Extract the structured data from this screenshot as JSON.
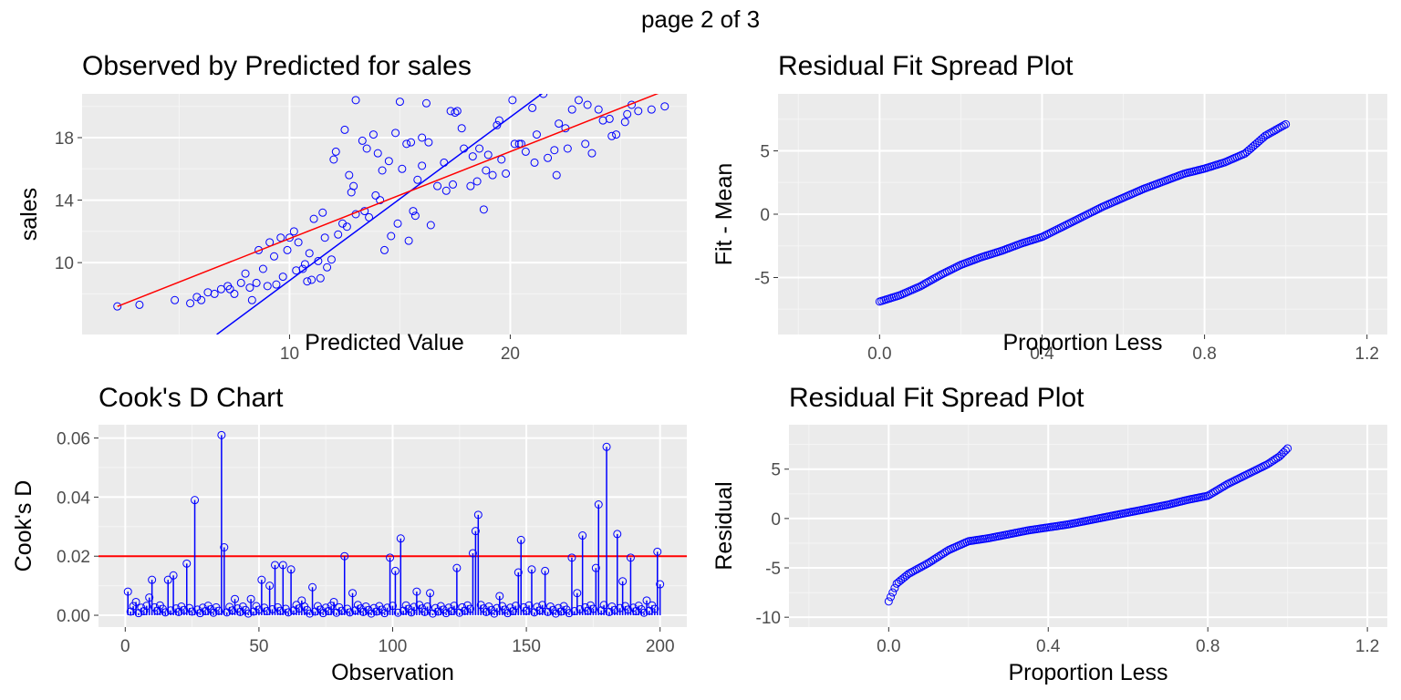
{
  "page_title": "page 2 of 3",
  "colors": {
    "panel": "#ebebeb",
    "grid_major": "#ffffff",
    "grid_minor": "#f5f5f5",
    "points": "#0000ff",
    "ref_line": "#ff0000",
    "tick": "#4d4d4d"
  },
  "chart_data": [
    {
      "type": "scatter",
      "title": "Observed by Predicted for sales",
      "xlabel": "Predicted Value",
      "ylabel": "sales",
      "xlim": [
        0.6,
        28.0
      ],
      "ylim": [
        5.4,
        20.8
      ],
      "xticks": [
        10,
        20
      ],
      "yticks": [
        10,
        14,
        18
      ],
      "series": [
        {
          "values_x": [
            2.2,
            3.2,
            4.8,
            5.5,
            5.8,
            6.0,
            6.3,
            6.6,
            6.9,
            7.2,
            7.5,
            7.8,
            8.0,
            8.2,
            8.5,
            8.8,
            9.0,
            9.3,
            9.6,
            9.9,
            10.2,
            10.4,
            10.6,
            10.9,
            11.1,
            11.3,
            11.6,
            11.9,
            12.1,
            12.4,
            12.7,
            13.0,
            13.3,
            13.6,
            13.9,
            14.2,
            14.5,
            14.8,
            15.1,
            15.4,
            15.7,
            16.0,
            16.3,
            16.7,
            17.0,
            17.4,
            17.8,
            18.2,
            18.6,
            19.0,
            19.4,
            19.8,
            20.2,
            20.7,
            21.2,
            21.7,
            22.2,
            22.8,
            23.4,
            24.0,
            24.6,
            25.2,
            25.8,
            26.4,
            27.0,
            11.5,
            12.0,
            12.5,
            13.0,
            13.5,
            14.0,
            15.0,
            15.5,
            16.0,
            17.5,
            18.5,
            19.5,
            21.0,
            22.5,
            23.5,
            24.5,
            25.5,
            8.6,
            9.1,
            9.7,
            10.3,
            10.8,
            11.4,
            12.2,
            12.8,
            13.4,
            14.3,
            14.9,
            15.6,
            16.4,
            17.1,
            17.9,
            18.8,
            19.6,
            20.4,
            21.5,
            22.6,
            23.7,
            24.8,
            7.3,
            8.3,
            9.4,
            10.0,
            10.7,
            11.7,
            12.9,
            13.8,
            14.6,
            15.3,
            16.2,
            17.3,
            18.3,
            19.2,
            20.1,
            21.1,
            22.1,
            23.1,
            24.2,
            25.3,
            11.0,
            12.6,
            14.1,
            15.8,
            17.6,
            18.9,
            20.5,
            22.0
          ],
          "values_y": [
            7.2,
            7.3,
            7.6,
            7.4,
            7.8,
            7.6,
            8.1,
            8.0,
            8.3,
            8.5,
            8.0,
            8.7,
            9.3,
            8.4,
            8.7,
            9.6,
            8.5,
            10.4,
            11.6,
            10.8,
            12.0,
            11.3,
            9.6,
            10.6,
            12.8,
            10.1,
            11.6,
            10.2,
            17.1,
            12.5,
            15.6,
            13.1,
            17.8,
            12.9,
            14.3,
            15.9,
            16.5,
            18.3,
            16.0,
            11.4,
            13.0,
            16.2,
            17.7,
            14.9,
            16.4,
            15.0,
            18.6,
            14.9,
            17.3,
            16.9,
            18.8,
            15.7,
            17.6,
            17.1,
            18.2,
            16.7,
            18.9,
            19.8,
            17.6,
            19.8,
            18.1,
            19.0,
            19.7,
            19.8,
            20.0,
            13.2,
            16.6,
            18.5,
            20.4,
            17.3,
            17.0,
            20.3,
            17.7,
            18.0,
            19.6,
            15.2,
            19.1,
            19.9,
            18.6,
            20.1,
            19.2,
            20.1,
            10.8,
            11.3,
            9.1,
            9.5,
            8.8,
            9.0,
            11.8,
            14.5,
            13.3,
            10.8,
            12.5,
            13.3,
            12.4,
            14.6,
            17.3,
            13.4,
            16.6,
            17.6,
            20.8,
            17.3,
            17.0,
            18.2,
            8.3,
            7.6,
            8.6,
            11.6,
            9.9,
            9.7,
            14.9,
            18.2,
            11.7,
            17.6,
            20.2,
            19.7,
            16.8,
            15.6,
            20.4,
            16.4,
            15.6,
            20.4,
            19.1,
            19.5,
            8.9,
            12.3,
            14.0,
            15.3,
            19.7,
            15.9,
            17.6,
            17.2
          ]
        }
      ],
      "fit_lines": [
        {
          "color": "blue",
          "points": [
            [
              6.7,
              5.4
            ],
            [
              21.9,
              21.3
            ]
          ]
        },
        {
          "color": "red",
          "points": [
            [
              2.2,
              7.2
            ],
            [
              27.0,
              21.0
            ]
          ]
        }
      ]
    },
    {
      "type": "scatter",
      "title": "Residual Fit Spread Plot",
      "xlabel": "Proportion Less",
      "ylabel": "Fit - Mean",
      "xlim": [
        -0.25,
        1.25
      ],
      "ylim": [
        -9.5,
        9.5
      ],
      "xticks": [
        0.0,
        0.4,
        0.8,
        1.2
      ],
      "yticks": [
        -5,
        0,
        5
      ],
      "n_points": 200,
      "quantile_curve": [
        [
          0.0,
          -6.9
        ],
        [
          0.05,
          -6.4
        ],
        [
          0.1,
          -5.7
        ],
        [
          0.15,
          -4.8
        ],
        [
          0.2,
          -4.0
        ],
        [
          0.25,
          -3.4
        ],
        [
          0.3,
          -2.9
        ],
        [
          0.35,
          -2.3
        ],
        [
          0.4,
          -1.8
        ],
        [
          0.45,
          -1.0
        ],
        [
          0.5,
          -0.2
        ],
        [
          0.55,
          0.6
        ],
        [
          0.6,
          1.3
        ],
        [
          0.65,
          2.0
        ],
        [
          0.7,
          2.6
        ],
        [
          0.75,
          3.2
        ],
        [
          0.8,
          3.6
        ],
        [
          0.85,
          4.1
        ],
        [
          0.9,
          4.8
        ],
        [
          0.95,
          6.2
        ],
        [
          1.0,
          7.1
        ]
      ]
    },
    {
      "type": "bar",
      "title": "Cook's D Chart",
      "xlabel": "Observation",
      "ylabel": "Cook's D",
      "xlim": [
        -10,
        210
      ],
      "ylim": [
        -0.004,
        0.0645
      ],
      "xticks": [
        0,
        50,
        100,
        150,
        200
      ],
      "yticks": [
        0.0,
        0.02,
        0.04,
        0.06
      ],
      "threshold": 0.02,
      "n_obs": 200,
      "highlighted": [
        [
          1,
          0.008
        ],
        [
          4,
          0.0045
        ],
        [
          9,
          0.006
        ],
        [
          10,
          0.012
        ],
        [
          16,
          0.012
        ],
        [
          18,
          0.0135
        ],
        [
          23,
          0.0175
        ],
        [
          26,
          0.039
        ],
        [
          36,
          0.061
        ],
        [
          37,
          0.023
        ],
        [
          41,
          0.0055
        ],
        [
          47,
          0.0055
        ],
        [
          51,
          0.012
        ],
        [
          54,
          0.01
        ],
        [
          56,
          0.017
        ],
        [
          59,
          0.017
        ],
        [
          62,
          0.0155
        ],
        [
          66,
          0.005
        ],
        [
          70,
          0.0095
        ],
        [
          78,
          0.0045
        ],
        [
          82,
          0.02
        ],
        [
          85,
          0.0075
        ],
        [
          99,
          0.0195
        ],
        [
          101,
          0.015
        ],
        [
          103,
          0.026
        ],
        [
          109,
          0.008
        ],
        [
          114,
          0.0075
        ],
        [
          124,
          0.016
        ],
        [
          130,
          0.021
        ],
        [
          131,
          0.0285
        ],
        [
          132,
          0.034
        ],
        [
          140,
          0.0065
        ],
        [
          147,
          0.0145
        ],
        [
          148,
          0.0255
        ],
        [
          152,
          0.0155
        ],
        [
          157,
          0.015
        ],
        [
          167,
          0.0195
        ],
        [
          169,
          0.0075
        ],
        [
          171,
          0.027
        ],
        [
          176,
          0.016
        ],
        [
          177,
          0.0375
        ],
        [
          180,
          0.057
        ],
        [
          184,
          0.0275
        ],
        [
          186,
          0.0115
        ],
        [
          189,
          0.0195
        ],
        [
          195,
          0.005
        ],
        [
          199,
          0.0215
        ],
        [
          200,
          0.0105
        ]
      ]
    },
    {
      "type": "scatter",
      "title": "Residual Fit Spread Plot",
      "xlabel": "Proportion Less",
      "ylabel": "Residual",
      "xlim": [
        -0.25,
        1.25
      ],
      "ylim": [
        -11.0,
        9.5
      ],
      "xticks": [
        0.0,
        0.4,
        0.8,
        1.2
      ],
      "yticks": [
        -10,
        -5,
        0,
        5
      ],
      "n_points": 200,
      "quantile_curve": [
        [
          0.0,
          -8.4
        ],
        [
          0.02,
          -6.6
        ],
        [
          0.05,
          -5.6
        ],
        [
          0.1,
          -4.5
        ],
        [
          0.15,
          -3.2
        ],
        [
          0.2,
          -2.3
        ],
        [
          0.25,
          -2.0
        ],
        [
          0.3,
          -1.6
        ],
        [
          0.35,
          -1.2
        ],
        [
          0.4,
          -0.9
        ],
        [
          0.45,
          -0.6
        ],
        [
          0.5,
          -0.2
        ],
        [
          0.55,
          0.2
        ],
        [
          0.6,
          0.6
        ],
        [
          0.65,
          1.0
        ],
        [
          0.7,
          1.4
        ],
        [
          0.75,
          1.9
        ],
        [
          0.8,
          2.3
        ],
        [
          0.85,
          3.5
        ],
        [
          0.9,
          4.5
        ],
        [
          0.95,
          5.5
        ],
        [
          0.98,
          6.3
        ],
        [
          1.0,
          7.1
        ]
      ]
    }
  ]
}
